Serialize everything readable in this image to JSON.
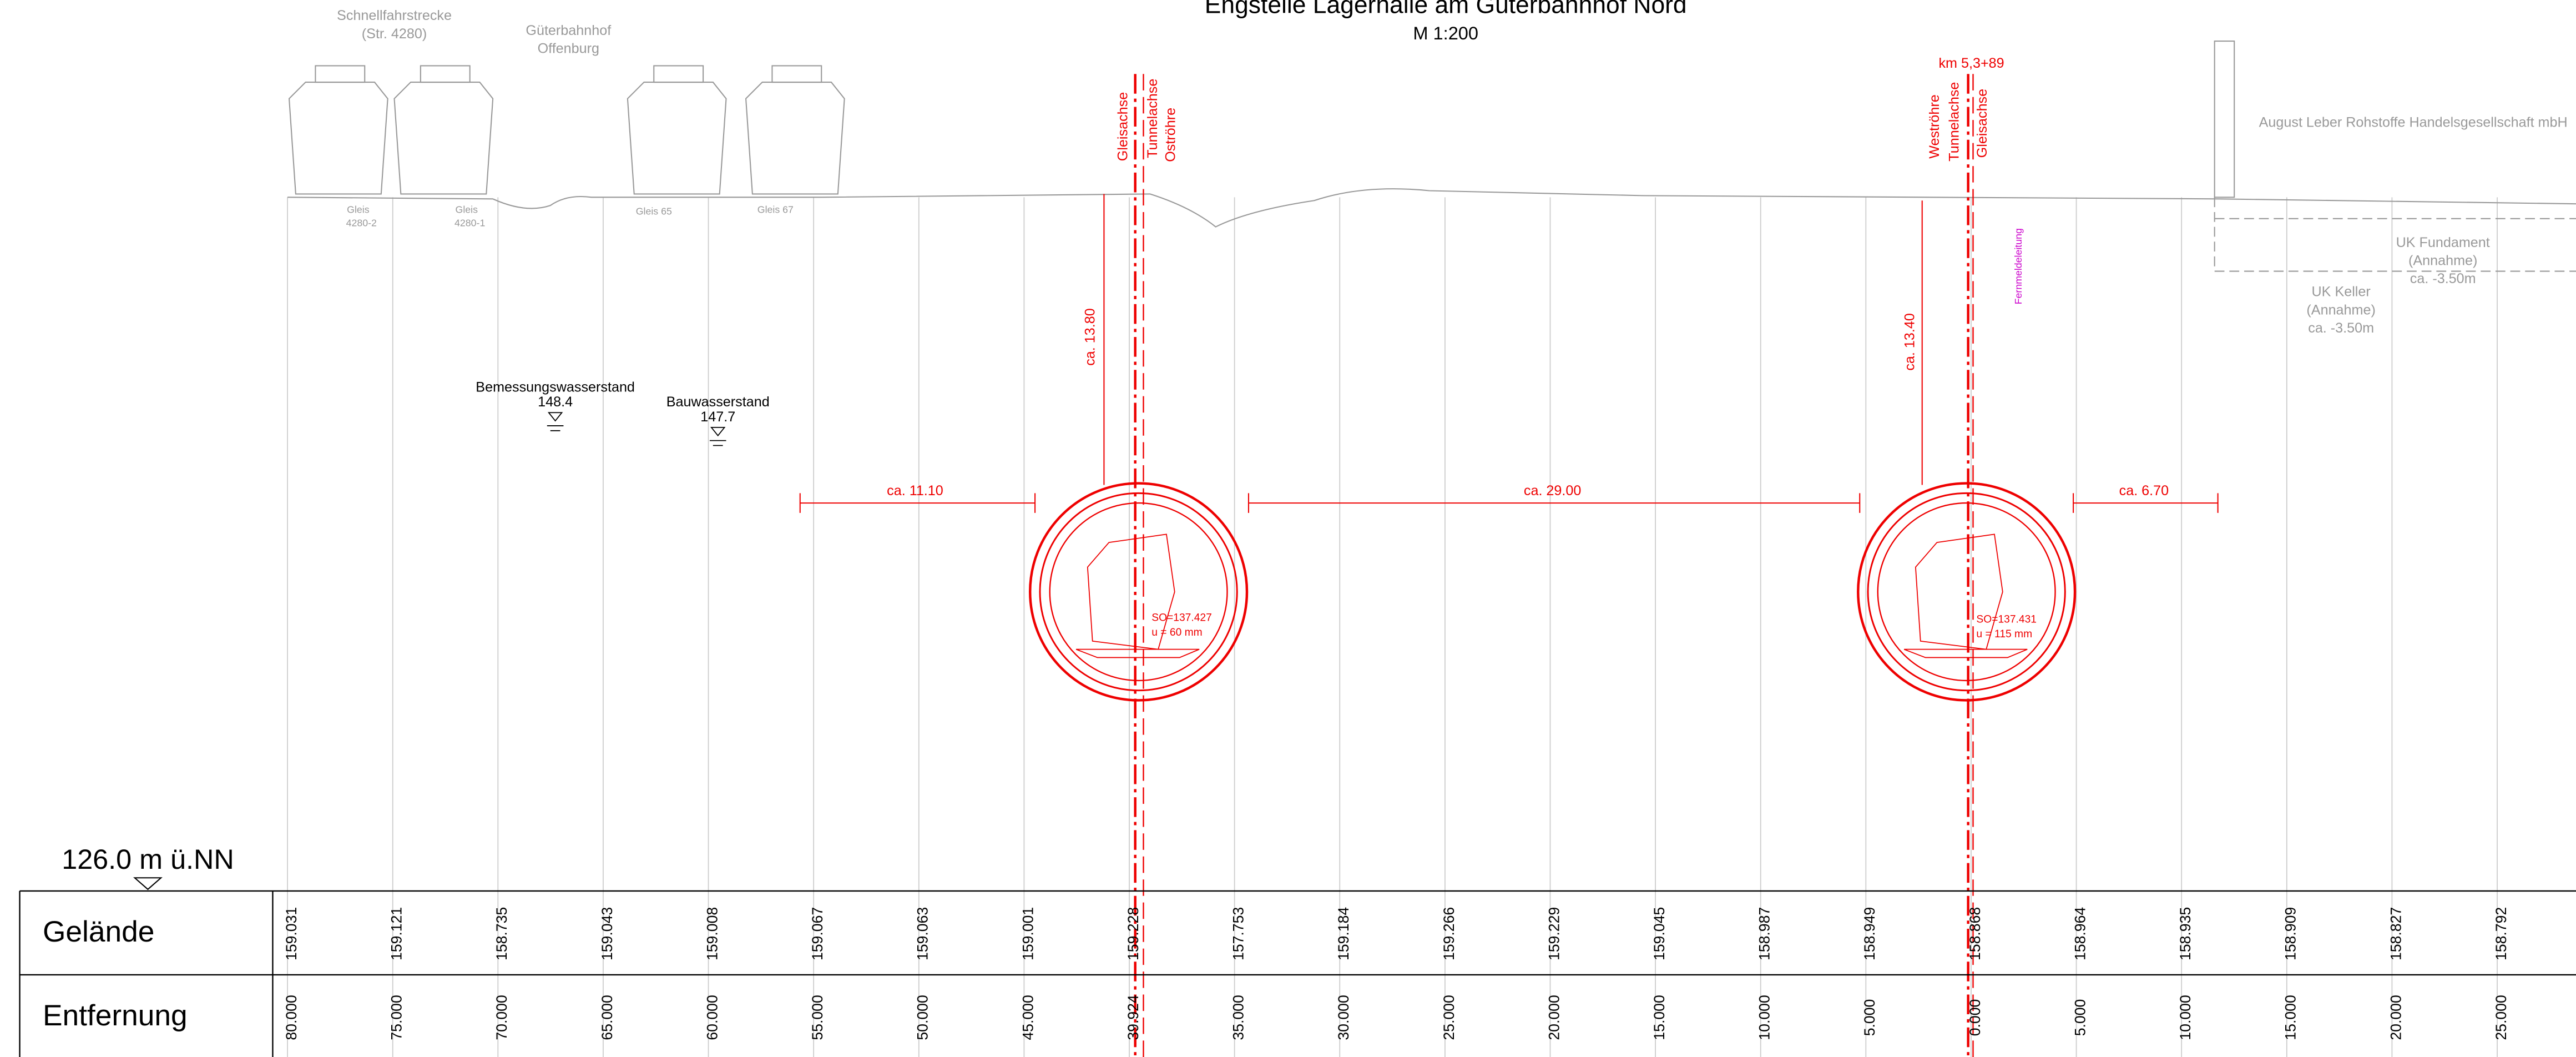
{
  "header": {
    "title": "Engstelle Lagerhalle am Güterbahnhof Nord",
    "scale": "M 1:200"
  },
  "tracks": {
    "line1": "Schnellfahrstrecke",
    "line2": "(Str. 4280)",
    "station1": "Güterbahnhof",
    "station2": "Offenburg",
    "gleis": [
      {
        "name": "Gleis",
        "number": "4280-2"
      },
      {
        "name": "Gleis",
        "number": "4280-1"
      },
      {
        "name": "Gleis 65"
      },
      {
        "name": "Gleis 67"
      }
    ]
  },
  "axes": {
    "east": [
      "Gleisachse",
      "Tunnelachse",
      "Oströhre"
    ],
    "km": "km 5,3+89",
    "west": [
      "Weströhre",
      "Tunnelachse",
      "Gleisachse"
    ]
  },
  "building": {
    "owner": "August Leber Rohstoffe Handelsgesellschaft mbH",
    "fundament": [
      "UK Fundament",
      "(Annahme)",
      "ca. -3.50m"
    ],
    "keller": [
      "UK Keller",
      "(Annahme)",
      "ca. -3.50m"
    ]
  },
  "cable": "Fernmeldeleitung",
  "dimensions": {
    "depth_east": "ca. 13.80",
    "depth_west": "ca. 13.40",
    "left": "ca. 11.10",
    "middle": "ca. 29.00",
    "right": "ca. 6.70"
  },
  "water": {
    "design_label": "Bemessungswasserstand",
    "design_value": "148.4",
    "construction_label": "Bauwasserstand",
    "construction_value": "147.7"
  },
  "tunnels": [
    {
      "so": "SO=137.427",
      "u": "u = 60 mm"
    },
    {
      "so": "SO=137.431",
      "u": "u = 115 mm"
    }
  ],
  "datum": "126.0 m ü.NN",
  "table": {
    "rows": [
      {
        "label": "Gelände",
        "values": [
          "159.031",
          "159.121",
          "158.735",
          "159.043",
          "159.008",
          "159.067",
          "159.063",
          "159.001",
          "159.228",
          "157.753",
          "159.184",
          "159.266",
          "159.229",
          "159.045",
          "158.987",
          "158.949",
          "158.868",
          "158.964",
          "158.935",
          "158.909",
          "158.827",
          "158.792"
        ]
      },
      {
        "label": "Entfernung",
        "values": [
          "80.000",
          "75.000",
          "70.000",
          "65.000",
          "60.000",
          "55.000",
          "50.000",
          "45.000",
          "39.924",
          "35.000",
          "30.000",
          "25.000",
          "20.000",
          "15.000",
          "10.000",
          "5.000",
          "0.000",
          "5.000",
          "10.000",
          "15.000",
          "20.000",
          "25.000"
        ]
      }
    ]
  }
}
